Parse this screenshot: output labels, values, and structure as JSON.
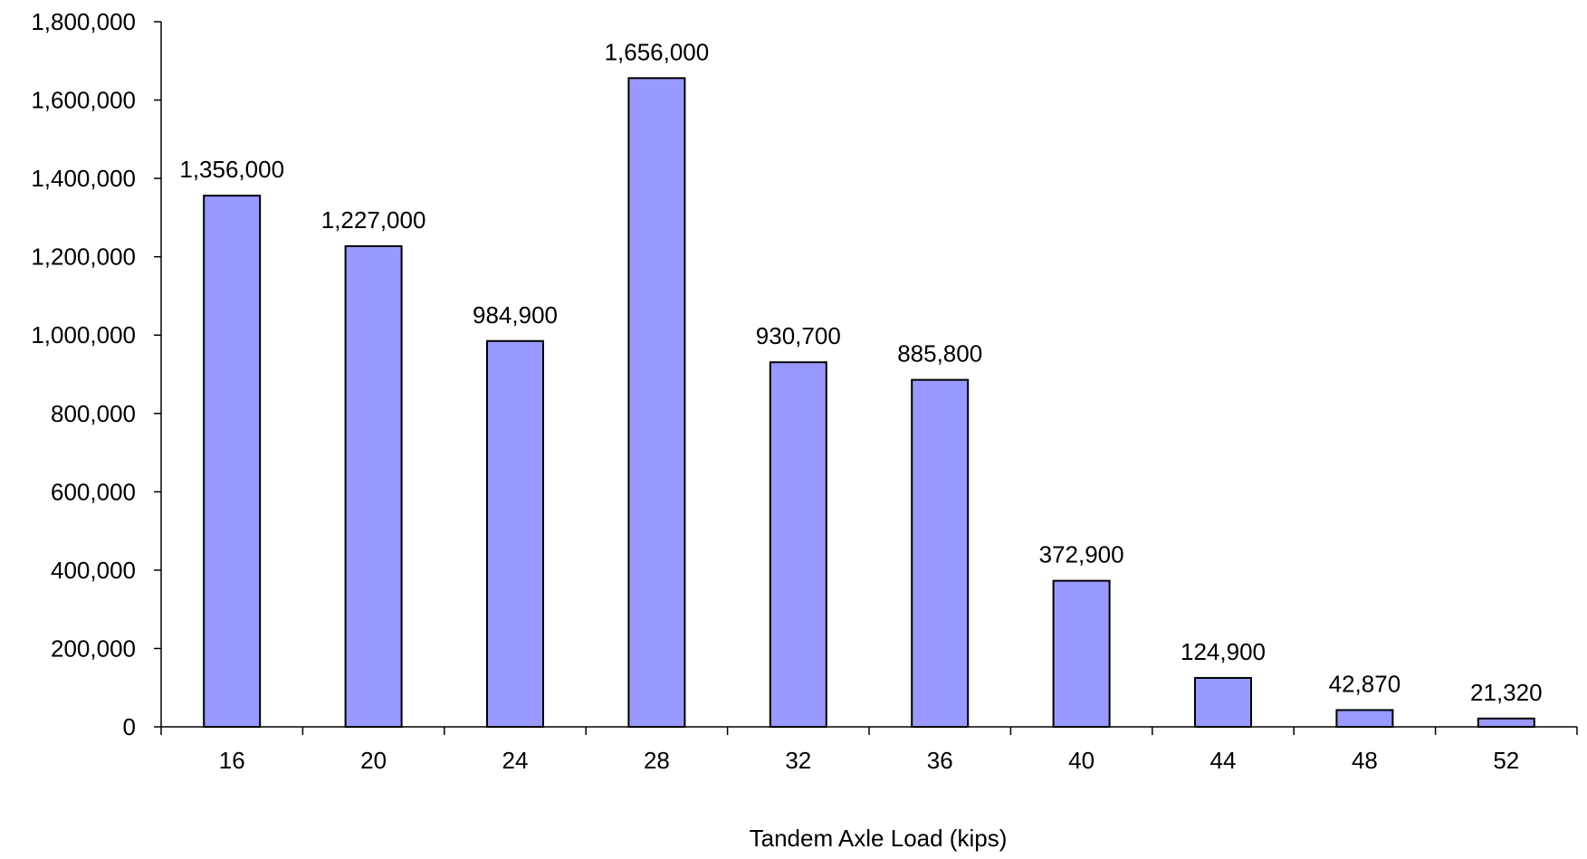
{
  "chart_data": {
    "type": "bar",
    "title": "",
    "xlabel": "Tandem Axle Load (kips)",
    "ylabel": "",
    "categories": [
      "16",
      "20",
      "24",
      "28",
      "32",
      "36",
      "40",
      "44",
      "48",
      "52"
    ],
    "values": [
      1356000,
      1227000,
      984900,
      1656000,
      930700,
      885800,
      372900,
      124900,
      42870,
      21320
    ],
    "data_labels": [
      "1,356,000",
      "1,227,000",
      "984,900",
      "1,656,000",
      "930,700",
      "885,800",
      "372,900",
      "124,900",
      "42,870",
      "21,320"
    ],
    "ylim": [
      0,
      1800000
    ],
    "y_ticks": [
      0,
      200000,
      400000,
      600000,
      800000,
      1000000,
      1200000,
      1400000,
      1600000,
      1800000
    ],
    "y_tick_labels": [
      "0",
      "200,000",
      "400,000",
      "600,000",
      "800,000",
      "1,000,000",
      "1,200,000",
      "1,400,000",
      "1,600,000",
      "1,800,000"
    ],
    "grid": false,
    "legend": "none",
    "colors": {
      "bar_fill": "#9999ff",
      "bar_stroke": "#000000",
      "axis": "#000000"
    }
  }
}
